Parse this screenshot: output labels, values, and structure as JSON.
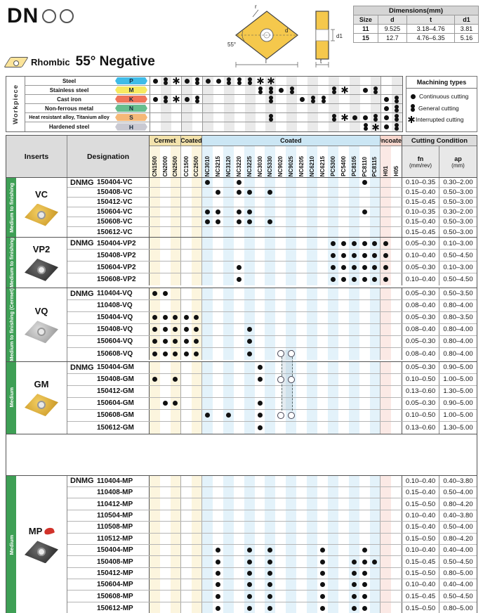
{
  "page": {
    "series_code": "DN"
  },
  "heading": {
    "shape_label": "Rhombic",
    "angle_label": "55° Negative"
  },
  "diagram": {
    "r": "r",
    "d": "d",
    "angle": "55°",
    "length": "l",
    "d1": "d1",
    "t": "t"
  },
  "dimensions": {
    "title": "Dimensions(mm)",
    "columns": [
      "Size",
      "d",
      "t",
      "d1"
    ],
    "rows": [
      [
        "11",
        "9.525",
        "3.18–4.76",
        "3.81"
      ],
      [
        "15",
        "12.7",
        "4.76–6.35",
        "5.16"
      ]
    ]
  },
  "workpiece": {
    "axis_label": "Workpiece",
    "rows": [
      {
        "material": "Steel",
        "code": "P",
        "color": "#3FBCE8",
        "marks": [
          [
            0,
            "c"
          ],
          [
            1,
            "g"
          ],
          [
            2,
            "i"
          ],
          [
            3,
            "c"
          ],
          [
            4,
            "g"
          ],
          [
            5,
            "c"
          ],
          [
            6,
            "c"
          ],
          [
            7,
            "g"
          ],
          [
            8,
            "g"
          ],
          [
            9,
            "g"
          ],
          [
            10,
            "i"
          ],
          [
            11,
            "i"
          ]
        ]
      },
      {
        "material": "Stainless steel",
        "code": "M",
        "color": "#F7E961",
        "marks": [
          [
            10,
            "g"
          ],
          [
            11,
            "g"
          ],
          [
            12,
            "c"
          ],
          [
            13,
            "g"
          ],
          [
            17,
            "g"
          ],
          [
            18,
            "i"
          ],
          [
            20,
            "c"
          ],
          [
            21,
            "g"
          ]
        ]
      },
      {
        "material": "Cast iron",
        "code": "K",
        "color": "#F0745A",
        "marks": [
          [
            0,
            "c"
          ],
          [
            1,
            "g"
          ],
          [
            2,
            "i"
          ],
          [
            3,
            "c"
          ],
          [
            4,
            "g"
          ],
          [
            11,
            "g"
          ],
          [
            14,
            "c"
          ],
          [
            15,
            "g"
          ],
          [
            16,
            "g"
          ],
          [
            22,
            "c"
          ],
          [
            23,
            "g"
          ]
        ]
      },
      {
        "material": "Non-ferrous metal",
        "code": "N",
        "color": "#66BD8E",
        "marks": [
          [
            22,
            "c"
          ],
          [
            23,
            "g"
          ]
        ]
      },
      {
        "material": "Heat resistant alloy, Titanium alloy",
        "code": "S",
        "color": "#F5B878",
        "marks": [
          [
            11,
            "g"
          ],
          [
            17,
            "g"
          ],
          [
            18,
            "i"
          ],
          [
            19,
            "c"
          ],
          [
            20,
            "c"
          ],
          [
            21,
            "g"
          ],
          [
            22,
            "c"
          ],
          [
            23,
            "g"
          ]
        ]
      },
      {
        "material": "Hardened steel",
        "code": "H",
        "color": "#C9C9D2",
        "marks": [
          [
            20,
            "g"
          ],
          [
            21,
            "i"
          ],
          [
            22,
            "c"
          ],
          [
            23,
            "g"
          ]
        ]
      }
    ]
  },
  "machining_types": {
    "title": "Machining types",
    "items": [
      {
        "symbol": "c",
        "label": "Continuous cutting"
      },
      {
        "symbol": "g",
        "label": "General cutting"
      },
      {
        "symbol": "i",
        "label": "Interrupted cutting"
      }
    ]
  },
  "grades": {
    "groups": [
      {
        "label": "Cermet",
        "span": 3,
        "palette": "y"
      },
      {
        "label": "Coated",
        "span": 2,
        "palette": "y"
      },
      {
        "label": "Coated",
        "span": 17,
        "palette": "b"
      },
      {
        "label": "Uncoated",
        "span": 2,
        "palette": "p"
      }
    ],
    "columns": [
      "CN1500",
      "CN2000",
      "CN2500",
      "CC1500",
      "CC2500",
      "NC3010",
      "NC3215",
      "NC3120",
      "NC3220",
      "NC3225",
      "NC3030",
      "NC5330",
      "NC9020",
      "NC9025",
      "NC6205",
      "NC6210",
      "NC6215",
      "PC5300",
      "PC5400",
      "PC8105",
      "PC8110",
      "PC8115",
      "H01",
      "H05"
    ]
  },
  "table": {
    "headers": {
      "inserts": "Inserts",
      "designation": "Designation",
      "cutting_condition": "Cutting Condition",
      "fn": "fn",
      "fn_unit": "(mm/rev)",
      "ap": "ap",
      "ap_unit": "(mm)"
    },
    "groups": [
      {
        "id": "vc",
        "name": "VC",
        "usage": "Medium to finishing",
        "insert_color": "gold",
        "prefix": "DNMG",
        "new_badge": false,
        "rows": [
          {
            "code": "150404-VC",
            "dots": [
              5,
              8,
              20
            ],
            "hollow": [],
            "fn": "0.10–0.35",
            "ap": "0.30–2.00"
          },
          {
            "code": "150408-VC",
            "dots": [
              6,
              8,
              9,
              11
            ],
            "hollow": [],
            "fn": "0.15–0.40",
            "ap": "0.50–3.00"
          },
          {
            "code": "150412-VC",
            "dots": [],
            "hollow": [],
            "fn": "0.15–0.45",
            "ap": "0.50–3.00"
          },
          {
            "code": "150604-VC",
            "dots": [
              5,
              6,
              8,
              9,
              20
            ],
            "hollow": [],
            "fn": "0.10–0.35",
            "ap": "0.30–2.00"
          },
          {
            "code": "150608-VC",
            "dots": [
              5,
              6,
              8,
              9,
              11
            ],
            "hollow": [],
            "fn": "0.15–0.40",
            "ap": "0.50–3.00"
          },
          {
            "code": "150612-VC",
            "dots": [],
            "hollow": [],
            "fn": "0.15–0.45",
            "ap": "0.50–3.00"
          }
        ]
      },
      {
        "id": "vp2",
        "name": "VP2",
        "usage": "Medium to finishing",
        "insert_color": "dark",
        "prefix": "DNMG",
        "new_badge": false,
        "rows": [
          {
            "code": "150404-VP2",
            "dots": [
              17,
              18,
              19,
              20,
              21,
              22
            ],
            "hollow": [],
            "fn": "0.05–0.30",
            "ap": "0.10–3.00"
          },
          {
            "code": "150408-VP2",
            "dots": [
              17,
              18,
              19,
              20,
              21,
              22
            ],
            "hollow": [],
            "fn": "0.10–0.40",
            "ap": "0.50–4.50"
          },
          {
            "code": "150604-VP2",
            "dots": [
              8,
              17,
              18,
              19,
              20,
              21,
              22
            ],
            "hollow": [],
            "fn": "0.05–0.30",
            "ap": "0.10–3.00"
          },
          {
            "code": "150608-VP2",
            "dots": [
              8,
              17,
              18,
              19,
              20,
              21,
              22
            ],
            "hollow": [],
            "fn": "0.10–0.40",
            "ap": "0.50–4.50"
          }
        ]
      },
      {
        "id": "vq",
        "name": "VQ",
        "usage": "Medium to finishing (Cermet)",
        "insert_color": "silver",
        "prefix": "DNMG",
        "new_badge": false,
        "rows": [
          {
            "code": "110404-VQ",
            "dots": [
              0,
              1
            ],
            "hollow": [],
            "fn": "0.05–0.30",
            "ap": "0.50–3.50"
          },
          {
            "code": "110408-VQ",
            "dots": [],
            "hollow": [],
            "fn": "0.08–0.40",
            "ap": "0.80–4.00"
          },
          {
            "code": "150404-VQ",
            "dots": [
              0,
              1,
              2,
              3,
              4
            ],
            "hollow": [],
            "fn": "0.05–0.30",
            "ap": "0.80–3.50"
          },
          {
            "code": "150408-VQ",
            "dots": [
              0,
              1,
              2,
              3,
              4,
              9
            ],
            "hollow": [],
            "fn": "0.08–0.40",
            "ap": "0.80–4.00"
          },
          {
            "code": "150604-VQ",
            "dots": [
              0,
              1,
              2,
              3,
              4,
              9
            ],
            "hollow": [],
            "fn": "0.05–0.30",
            "ap": "0.80–4.00"
          },
          {
            "code": "150608-VQ",
            "dots": [
              0,
              1,
              2,
              3,
              4,
              9
            ],
            "hollow": [
              12,
              13
            ],
            "fn": "0.08–0.40",
            "ap": "0.80–4.00"
          }
        ]
      },
      {
        "id": "gm",
        "name": "GM",
        "usage": "Medium",
        "insert_color": "gold",
        "prefix": "DNMG",
        "new_badge": false,
        "rows": [
          {
            "code": "150404-GM",
            "dots": [
              10
            ],
            "hollow": [],
            "fn": "0.05–0.30",
            "ap": "0.90–5.00"
          },
          {
            "code": "150408-GM",
            "dots": [
              0,
              2,
              10
            ],
            "hollow": [
              12,
              13
            ],
            "fn": "0.10–0.50",
            "ap": "1.00–5.00"
          },
          {
            "code": "150412-GM",
            "dots": [],
            "hollow": [],
            "fn": "0.13–0.60",
            "ap": "1.30–5.00"
          },
          {
            "code": "150604-GM",
            "dots": [
              1,
              2,
              10
            ],
            "hollow": [],
            "fn": "0.05–0.30",
            "ap": "0.90–5.00"
          },
          {
            "code": "150608-GM",
            "dots": [
              5,
              7,
              10
            ],
            "hollow": [
              12,
              13
            ],
            "fn": "0.10–0.50",
            "ap": "1.00–5.00"
          },
          {
            "code": "150612-GM",
            "dots": [
              10
            ],
            "hollow": [],
            "fn": "0.13–0.60",
            "ap": "1.30–5.00"
          }
        ]
      },
      {
        "id": "mp",
        "name": "MP",
        "usage": "Medium",
        "insert_color": "dark",
        "prefix": "DNMG",
        "new_badge": true,
        "rows": [
          {
            "code": "110404-MP",
            "dots": [],
            "hollow": [],
            "fn": "0.10–0.40",
            "ap": "0.40–3.80"
          },
          {
            "code": "110408-MP",
            "dots": [],
            "hollow": [],
            "fn": "0.15–0.40",
            "ap": "0.50–4.00"
          },
          {
            "code": "110412-MP",
            "dots": [],
            "hollow": [],
            "fn": "0.15–0.50",
            "ap": "0.80–4.20"
          },
          {
            "code": "110504-MP",
            "dots": [],
            "hollow": [],
            "fn": "0.10–0.40",
            "ap": "0.40–3.80"
          },
          {
            "code": "110508-MP",
            "dots": [],
            "hollow": [],
            "fn": "0.15–0.40",
            "ap": "0.50–4.00"
          },
          {
            "code": "110512-MP",
            "dots": [],
            "hollow": [],
            "fn": "0.15–0.50",
            "ap": "0.80–4.20"
          },
          {
            "code": "150404-MP",
            "dots": [
              6,
              9,
              11,
              16,
              20
            ],
            "hollow": [],
            "fn": "0.10–0.40",
            "ap": "0.40–4.00"
          },
          {
            "code": "150408-MP",
            "dots": [
              6,
              9,
              11,
              16,
              19,
              20,
              21
            ],
            "hollow": [],
            "fn": "0.15–0.45",
            "ap": "0.50–4.50"
          },
          {
            "code": "150412-MP",
            "dots": [
              6,
              9,
              11,
              16,
              19,
              20
            ],
            "hollow": [],
            "fn": "0.15–0.50",
            "ap": "0.80–5.00"
          },
          {
            "code": "150604-MP",
            "dots": [
              6,
              9,
              11,
              16,
              19,
              20
            ],
            "hollow": [],
            "fn": "0.10–0.40",
            "ap": "0.40–4.00"
          },
          {
            "code": "150608-MP",
            "dots": [
              6,
              9,
              11,
              16,
              19,
              20
            ],
            "hollow": [],
            "fn": "0.15–0.45",
            "ap": "0.50–4.50"
          },
          {
            "code": "150612-MP",
            "dots": [
              6,
              9,
              11,
              16,
              19,
              20
            ],
            "hollow": [],
            "fn": "0.15–0.50",
            "ap": "0.80–5.00"
          }
        ]
      }
    ]
  },
  "colors": {
    "group_bar_green": "#3E9F55",
    "cermet_header": "#F2E2AC",
    "coated_header": "#CBE6F4",
    "uncoated_header": "#F6D7CE",
    "new_badge_red": "#D1322A"
  }
}
